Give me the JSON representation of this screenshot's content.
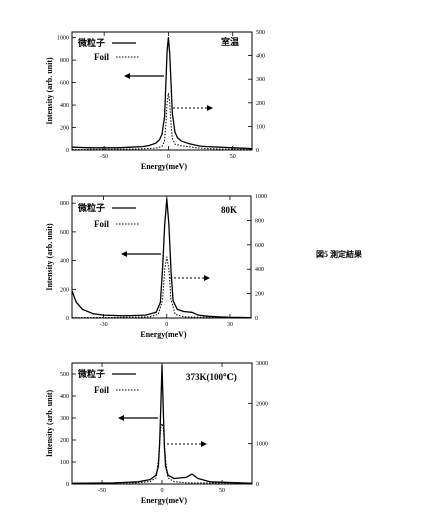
{
  "figure_caption": "図5 測定結果",
  "chart_data": [
    {
      "type": "line",
      "condition_label": "室温",
      "xlabel": "Energy(meV)",
      "ylabel": "Intensity (arb. unit)",
      "xlim": [
        -75,
        65
      ],
      "ylim_left": [
        0,
        1050
      ],
      "ylim_right": [
        0,
        500
      ],
      "x_ticks": [
        -50,
        0,
        50
      ],
      "left_ticks": [
        0,
        200,
        400,
        600,
        800,
        1000
      ],
      "right_ticks": [
        0,
        100,
        200,
        300,
        400,
        500
      ],
      "legend": [
        "微粒子",
        "Foil"
      ],
      "series": [
        {
          "name": "微粒子",
          "axis": "left",
          "style": "solid",
          "x": [
            -75,
            -60,
            -40,
            -30,
            -20,
            -15,
            -10,
            -7,
            -5,
            -3,
            -2,
            -1,
            0,
            1,
            2,
            3,
            5,
            7,
            10,
            15,
            20,
            25,
            30,
            40,
            50,
            60,
            65
          ],
          "y": [
            25,
            20,
            20,
            25,
            30,
            40,
            60,
            90,
            140,
            300,
            600,
            880,
            1000,
            860,
            600,
            330,
            160,
            110,
            80,
            60,
            45,
            35,
            30,
            25,
            20,
            15,
            12
          ]
        },
        {
          "name": "Foil",
          "axis": "right",
          "style": "dotted",
          "x": [
            -75,
            -40,
            -20,
            -10,
            -5,
            -3,
            -2,
            -1,
            0,
            1,
            2,
            3,
            5,
            10,
            15,
            20,
            30,
            40,
            65
          ],
          "y": [
            2,
            3,
            5,
            8,
            15,
            40,
            110,
            200,
            240,
            200,
            110,
            50,
            25,
            18,
            15,
            10,
            6,
            4,
            2
          ]
        }
      ]
    },
    {
      "type": "line",
      "condition_label": "80K",
      "xlabel": "Energy(meV)",
      "ylabel": "Intensity (arb. unit)",
      "xlim": [
        -45,
        40
      ],
      "ylim_left": [
        0,
        850
      ],
      "ylim_right": [
        0,
        1000
      ],
      "x_ticks": [
        -30,
        0,
        30
      ],
      "left_ticks": [
        0,
        200,
        400,
        600,
        800
      ],
      "right_ticks": [
        0,
        200,
        400,
        600,
        800,
        1000
      ],
      "legend": [
        "微粒子",
        "Foil"
      ],
      "series": [
        {
          "name": "微粒子",
          "axis": "left",
          "style": "solid",
          "x": [
            -45,
            -43,
            -40,
            -35,
            -30,
            -20,
            -10,
            -5,
            -3,
            -2,
            -1,
            0,
            1,
            2,
            3,
            5,
            8,
            12,
            15,
            20,
            25,
            30,
            40
          ],
          "y": [
            190,
            110,
            60,
            30,
            20,
            15,
            20,
            40,
            110,
            350,
            650,
            830,
            650,
            330,
            120,
            60,
            45,
            40,
            20,
            12,
            8,
            5,
            3
          ]
        },
        {
          "name": "Foil",
          "axis": "right",
          "style": "dotted",
          "x": [
            -45,
            -20,
            -8,
            -4,
            -2,
            -1,
            0,
            1,
            2,
            4,
            8,
            20,
            40
          ],
          "y": [
            3,
            5,
            10,
            30,
            150,
            400,
            500,
            400,
            150,
            30,
            10,
            5,
            3
          ]
        }
      ]
    },
    {
      "type": "line",
      "condition_label": "373K(100℃)",
      "xlabel": "Energy(meV)",
      "ylabel": "Intensity (arb. unit)",
      "xlim": [
        -75,
        75
      ],
      "ylim_left": [
        0,
        550
      ],
      "ylim_right": [
        0,
        3000
      ],
      "x_ticks": [
        -50,
        0,
        50
      ],
      "left_ticks": [
        0,
        100,
        200,
        300,
        400,
        500
      ],
      "right_ticks": [
        0,
        1000,
        2000,
        3000
      ],
      "legend": [
        "微粒子",
        "Foil"
      ],
      "series": [
        {
          "name": "微粒子",
          "axis": "left",
          "style": "solid",
          "x": [
            -75,
            -40,
            -20,
            -10,
            -5,
            -3,
            -2,
            -1,
            0,
            1,
            2,
            3,
            5,
            10,
            20,
            25,
            30,
            40,
            75
          ],
          "y": [
            3,
            5,
            10,
            20,
            40,
            80,
            180,
            350,
            540,
            350,
            170,
            80,
            40,
            25,
            30,
            45,
            25,
            10,
            3
          ]
        },
        {
          "name": "Foil",
          "axis": "right",
          "style": "dotted",
          "x": [
            -75,
            -20,
            -10,
            -5,
            -3,
            -1,
            0,
            1,
            3,
            5,
            10,
            20,
            75
          ],
          "y": [
            20,
            30,
            60,
            150,
            600,
            1400,
            1500,
            1400,
            600,
            150,
            60,
            30,
            20
          ]
        }
      ]
    }
  ]
}
